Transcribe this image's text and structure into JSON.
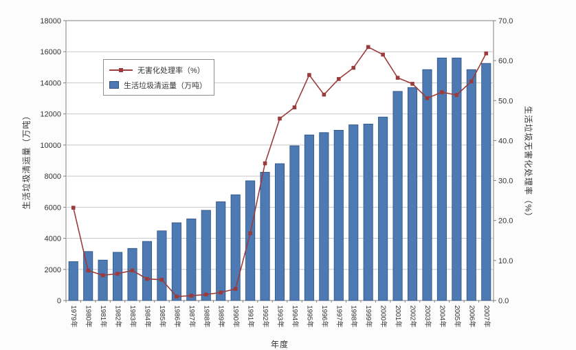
{
  "chart_data": {
    "type": "combo",
    "title": "",
    "xlabel": "年度",
    "categories": [
      "1979年",
      "1980年",
      "1981年",
      "1982年",
      "1983年",
      "1984年",
      "1985年",
      "1986年",
      "1987年",
      "1988年",
      "1989年",
      "1990年",
      "1991年",
      "1992年",
      "1993年",
      "1994年",
      "1995年",
      "1996年",
      "1997年",
      "1998年",
      "1999年",
      "2000年",
      "2001年",
      "2002年",
      "2003年",
      "2004年",
      "2005年",
      "2006年",
      "2007年"
    ],
    "series": [
      {
        "name": "生活垃圾清运量（万吨）",
        "type": "bar",
        "axis": "left",
        "color": "#4d7ab2",
        "border_color": "#2c5282",
        "values": [
          2500,
          3150,
          2600,
          3100,
          3350,
          3800,
          4480,
          5000,
          5250,
          5800,
          6350,
          6800,
          7700,
          8250,
          8800,
          9950,
          10650,
          10800,
          10950,
          11300,
          11350,
          11800,
          13450,
          13700,
          14850,
          15600,
          15600,
          14850,
          15250
        ]
      },
      {
        "name": "无害化处理率（%）",
        "type": "line",
        "axis": "right",
        "color": "#9c3b3b",
        "marker": "square",
        "values": [
          23.2,
          7.5,
          6.3,
          6.7,
          7.5,
          5.4,
          5.2,
          1.0,
          1.2,
          1.5,
          2.0,
          2.9,
          16.8,
          34.3,
          45.5,
          48.3,
          56.4,
          51.5,
          55.4,
          58.2,
          63.4,
          61.5,
          55.7,
          54.2,
          50.6,
          52.1,
          51.4,
          54.8,
          61.8
        ]
      }
    ],
    "left_axis": {
      "label": "生活垃圾清运量（万吨）",
      "min": 0,
      "max": 18000,
      "step": 2000,
      "tick_labels": [
        "0",
        "2000",
        "4000",
        "6000",
        "8000",
        "10000",
        "12000",
        "14000",
        "16000",
        "18000"
      ]
    },
    "right_axis": {
      "label": "生活垃圾无害化处理率（%）",
      "min": 0,
      "max": 70,
      "step": 10,
      "tick_labels": [
        "0.0",
        "10.0",
        "20.0",
        "30.0",
        "40.0",
        "50.0",
        "60.0",
        "70.0"
      ]
    },
    "legend": {
      "position": "top-left-inside",
      "entries": [
        {
          "label": "无害化处理率（%）",
          "swatch": "line-marker",
          "color": "#9c3b3b"
        },
        {
          "label": "生活垃圾清运量（万吨）",
          "swatch": "bar",
          "color": "#4d7ab2"
        }
      ]
    },
    "grid": true,
    "colors": {
      "figure_background": "#fcfcfc",
      "plot_background": "#ffffff",
      "grid": "#c8c8c8",
      "axis": "#7f7f7f",
      "text": "#333333"
    }
  }
}
